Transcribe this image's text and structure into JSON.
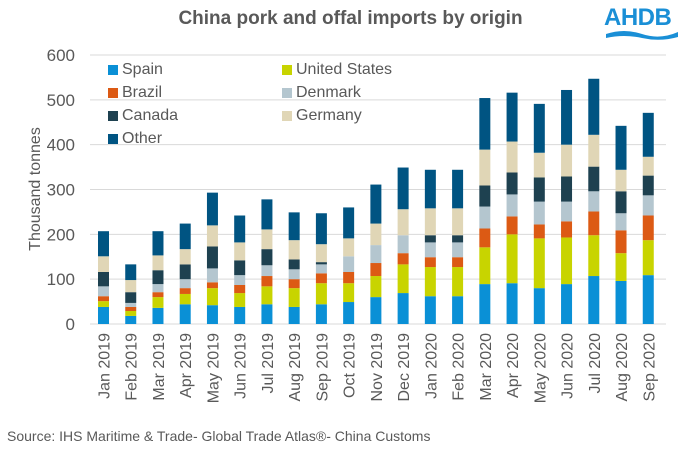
{
  "header": {
    "title": "China pork and offal imports by origin",
    "logo_text": "AHDB"
  },
  "source": "Source: IHS Maritime & Trade- Global Trade Atlas®- China Customs",
  "chart_data": {
    "type": "bar",
    "stacked": true,
    "title": "China pork and offal imports by origin",
    "xlabel": "",
    "ylabel": "Thousand tonnes",
    "ylim": [
      0,
      600
    ],
    "yticks": [
      0,
      100,
      200,
      300,
      400,
      500,
      600
    ],
    "grid": true,
    "legend_position": "top-left",
    "categories": [
      "Jan 2019",
      "Feb 2019",
      "Mar 2019",
      "Apr 2019",
      "May 2019",
      "Jun 2019",
      "Jul 2019",
      "Aug 2019",
      "Sep 2019",
      "Oct 2019",
      "Nov 2019",
      "Dec 2019",
      "Jan 2020",
      "Feb 2020",
      "Mar 2020",
      "Apr 2020",
      "May 2020",
      "Jun 2020",
      "Jul 2020",
      "Aug 2020",
      "Sep 2020"
    ],
    "series": [
      {
        "name": "Spain",
        "color": "#0a90d6",
        "values": [
          38,
          18,
          36,
          44,
          42,
          38,
          44,
          38,
          44,
          49,
          60,
          69,
          62,
          62,
          89,
          91,
          80,
          89,
          107,
          96,
          109
        ]
      },
      {
        "name": "United States",
        "color": "#c8d400",
        "values": [
          13,
          11,
          24,
          23,
          38,
          31,
          40,
          42,
          47,
          42,
          47,
          64,
          65,
          65,
          82,
          109,
          111,
          104,
          91,
          62,
          78
        ]
      },
      {
        "name": "Brazil",
        "color": "#dc5a14",
        "values": [
          11,
          9,
          11,
          13,
          13,
          18,
          23,
          20,
          22,
          25,
          29,
          25,
          22,
          22,
          42,
          40,
          31,
          36,
          53,
          51,
          55
        ]
      },
      {
        "name": "Denmark",
        "color": "#b4c6cf",
        "values": [
          22,
          9,
          18,
          20,
          31,
          22,
          24,
          22,
          20,
          35,
          40,
          40,
          33,
          33,
          49,
          49,
          51,
          44,
          45,
          38,
          45
        ]
      },
      {
        "name": "Canada",
        "color": "#1e4150",
        "values": [
          32,
          24,
          31,
          33,
          49,
          33,
          36,
          22,
          5,
          0,
          0,
          0,
          16,
          16,
          47,
          49,
          54,
          56,
          55,
          49,
          44
        ]
      },
      {
        "name": "Germany",
        "color": "#e0d6b6",
        "values": [
          35,
          27,
          33,
          34,
          47,
          40,
          44,
          43,
          40,
          40,
          48,
          58,
          60,
          60,
          80,
          69,
          55,
          71,
          71,
          48,
          42
        ]
      },
      {
        "name": "Other",
        "color": "#005482",
        "values": [
          56,
          35,
          54,
          57,
          73,
          60,
          67,
          62,
          69,
          69,
          87,
          93,
          86,
          86,
          115,
          109,
          109,
          122,
          125,
          98,
          98
        ]
      }
    ]
  }
}
